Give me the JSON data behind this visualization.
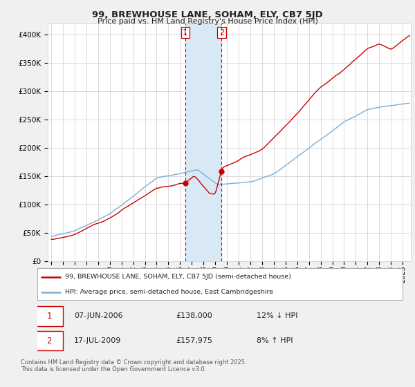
{
  "title": "99, BREWHOUSE LANE, SOHAM, ELY, CB7 5JD",
  "subtitle": "Price paid vs. HM Land Registry's House Price Index (HPI)",
  "ylim": [
    0,
    420000
  ],
  "yticks": [
    0,
    50000,
    100000,
    150000,
    200000,
    250000,
    300000,
    350000,
    400000
  ],
  "ytick_labels": [
    "£0",
    "£50K",
    "£100K",
    "£150K",
    "£200K",
    "£250K",
    "£300K",
    "£350K",
    "£400K"
  ],
  "sale1_date": 2006.44,
  "sale1_price": 138000,
  "sale1_label": "07-JUN-2006",
  "sale1_value": "£138,000",
  "sale1_pct": "12% ↓ HPI",
  "sale2_date": 2009.54,
  "sale2_price": 157975,
  "sale2_label": "17-JUL-2009",
  "sale2_value": "£157,975",
  "sale2_pct": "8% ↑ HPI",
  "legend_line1": "99, BREWHOUSE LANE, SOHAM, ELY, CB7 5JD (semi-detached house)",
  "legend_line2": "HPI: Average price, semi-detached house, East Cambridgeshire",
  "footer": "Contains HM Land Registry data © Crown copyright and database right 2025.\nThis data is licensed under the Open Government Licence v3.0.",
  "line_color": "#cc0000",
  "hpi_color": "#7aadda",
  "bg_color": "#f0f0f0",
  "plot_bg": "#ffffff",
  "shade_color": "#d8e8f5",
  "vline_color": "#cc0000",
  "grid_color": "#cccccc",
  "xlim_left": 1994.7,
  "xlim_right": 2025.7
}
